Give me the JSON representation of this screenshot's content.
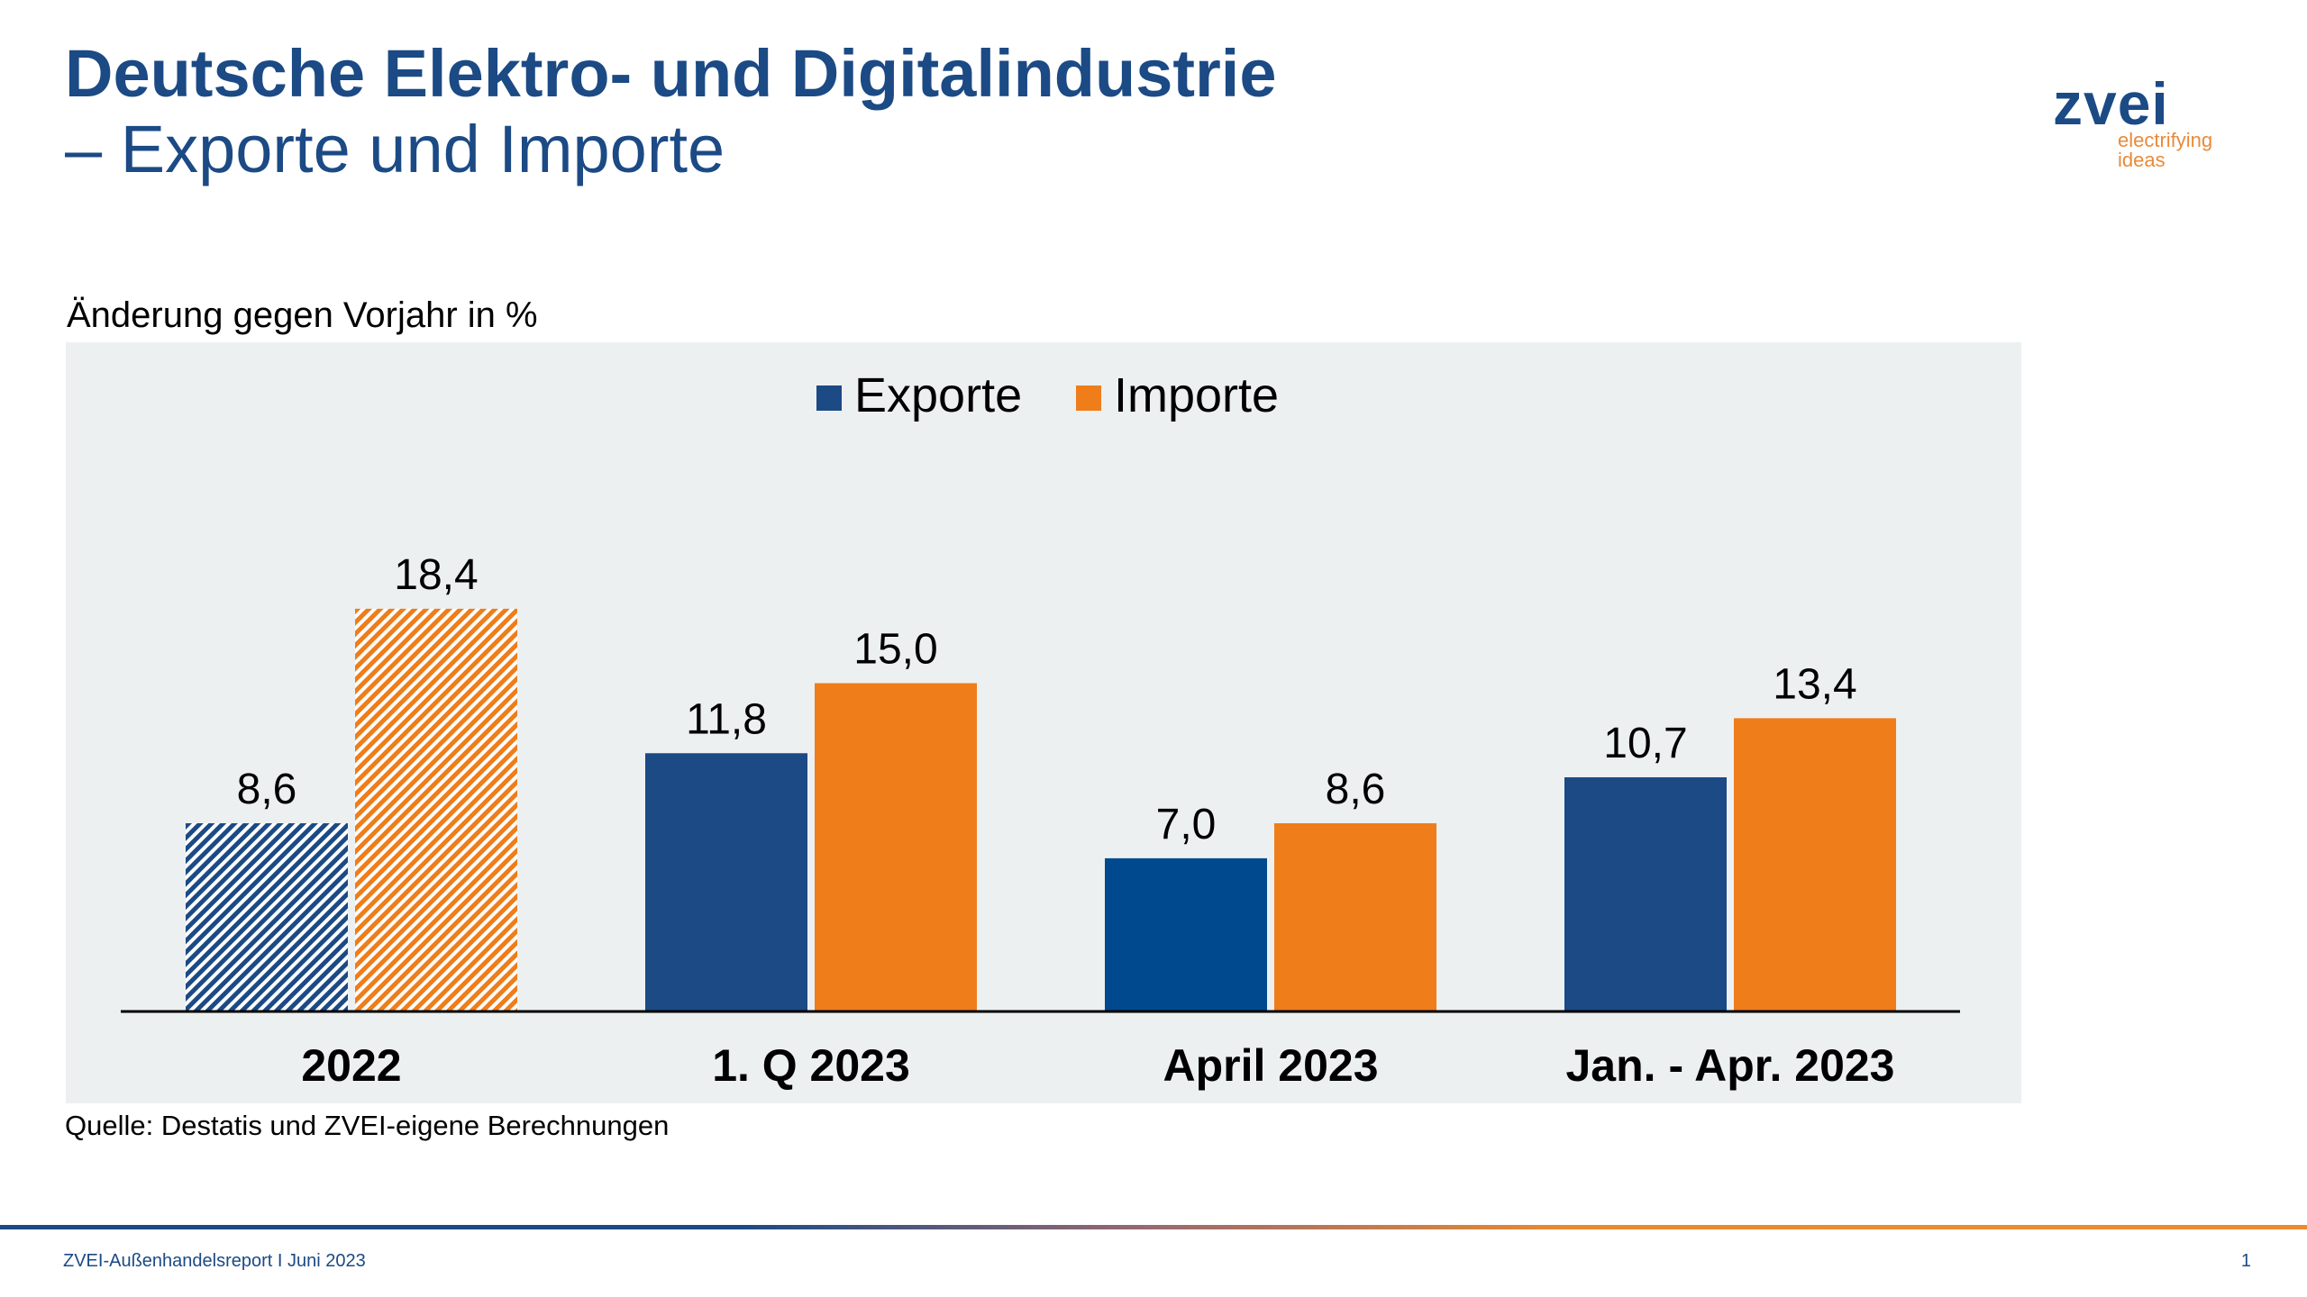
{
  "header": {
    "title_line1": "Deutsche Elektro- und Digitalindustrie",
    "title_line2": "– Exporte und Importe"
  },
  "logo": {
    "wordmark": "zvei",
    "tagline_line1": "electrifying",
    "tagline_line2": "ideas"
  },
  "chart_data": {
    "type": "bar",
    "ylabel": "Änderung gegen Vorjahr in %",
    "categories": [
      "2022",
      "1. Q 2023",
      "April 2023",
      "Jan. - Apr. 2023"
    ],
    "series": [
      {
        "name": "Exporte",
        "values": [
          8.6,
          11.8,
          7.0,
          10.7
        ],
        "labels": [
          "8,6",
          "11,8",
          "7,0",
          "10,7"
        ],
        "color": "#1b4a85"
      },
      {
        "name": "Importe",
        "values": [
          18.4,
          15.0,
          8.6,
          13.4
        ],
        "labels": [
          "18,4",
          "15,0",
          "8,6",
          "13,4"
        ],
        "color": "#ee7d1a"
      }
    ],
    "hatched_categories": [
      "2022"
    ],
    "legend": "top-center",
    "grid": false,
    "ylim": [
      0,
      20
    ]
  },
  "source": "Quelle: Destatis und ZVEI-eigene Berechnungen",
  "footer": {
    "text": "ZVEI-Außenhandelsreport I Juni 2023",
    "page": "1"
  }
}
